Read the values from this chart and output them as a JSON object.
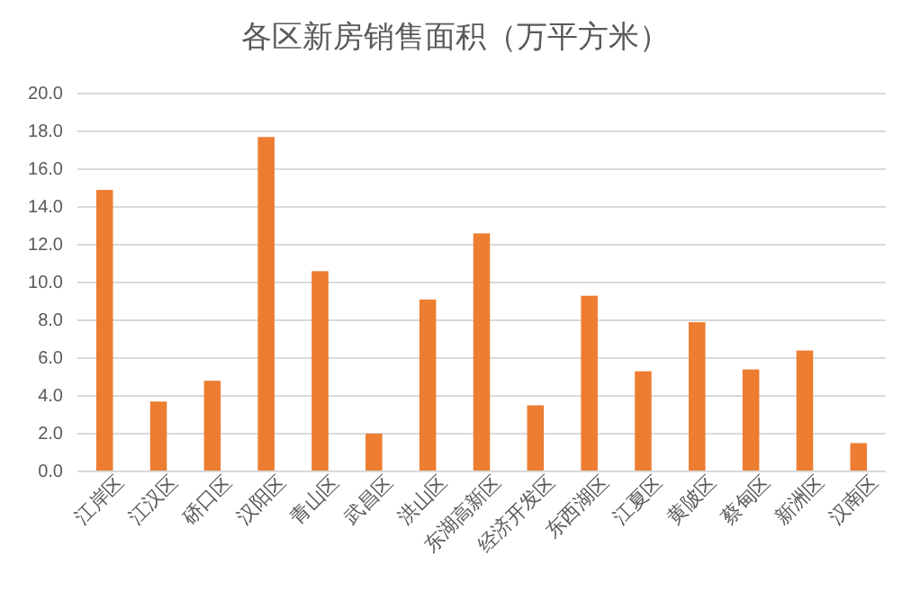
{
  "chart_data": {
    "type": "bar",
    "title": "各区新房销售面积（万平方米）",
    "categories": [
      "江岸区",
      "江汉区",
      "硚口区",
      "汉阳区",
      "青山区",
      "武昌区",
      "洪山区",
      "东湖高新区",
      "经济开发区",
      "东西湖区",
      "江夏区",
      "黄陂区",
      "蔡甸区",
      "新洲区",
      "汉南区"
    ],
    "values": [
      14.9,
      3.7,
      4.8,
      17.7,
      10.6,
      2.0,
      9.1,
      12.6,
      3.5,
      9.3,
      5.3,
      7.9,
      5.4,
      6.4,
      1.5
    ],
    "color": "#ed7d31",
    "ylim": [
      0,
      20
    ],
    "yticks": [
      {
        "value": 0,
        "label": "0.0"
      },
      {
        "value": 2,
        "label": "2.0"
      },
      {
        "value": 4,
        "label": "4.0"
      },
      {
        "value": 6,
        "label": "6.0"
      },
      {
        "value": 8,
        "label": "8.0"
      },
      {
        "value": 10,
        "label": "10.0"
      },
      {
        "value": 12,
        "label": "12.0"
      },
      {
        "value": 14,
        "label": "14.0"
      },
      {
        "value": 16,
        "label": "16.0"
      },
      {
        "value": 18,
        "label": "18.0"
      },
      {
        "value": 20,
        "label": "20.0"
      }
    ],
    "grid": "y"
  }
}
